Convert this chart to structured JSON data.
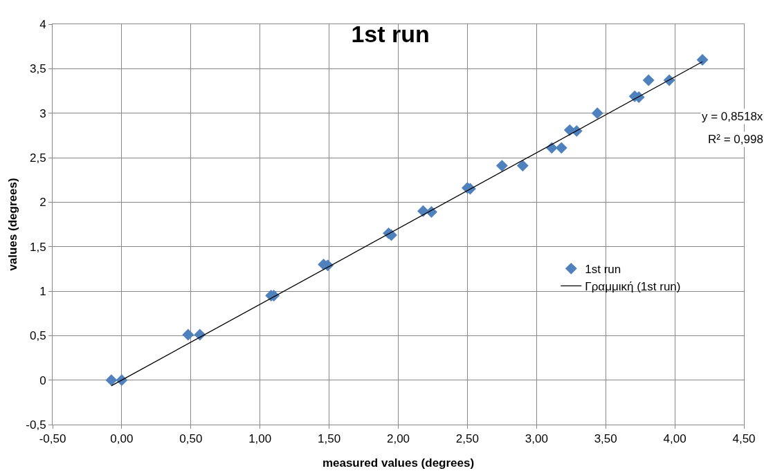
{
  "chart_data": {
    "type": "scatter",
    "title": "1st run",
    "xlabel": "measured values (degrees)",
    "ylabel": "values (degrees)",
    "series": [
      {
        "name": "1st run",
        "marker": "diamond",
        "color": "#4f81bd",
        "x": [
          -0.075,
          0,
          0.48,
          0.565,
          1.08,
          1.1,
          1.46,
          1.49,
          1.93,
          1.95,
          2.18,
          2.24,
          2.5,
          2.52,
          2.75,
          2.9,
          3.11,
          3.18,
          3.24,
          3.29,
          3.44,
          3.71,
          3.74,
          3.81,
          3.96,
          4.2
        ],
        "values": [
          0,
          0,
          0.51,
          0.51,
          0.95,
          0.95,
          1.3,
          1.29,
          1.65,
          1.63,
          1.9,
          1.89,
          2.16,
          2.15,
          2.41,
          2.41,
          2.61,
          2.61,
          2.81,
          2.8,
          3.0,
          3.19,
          3.18,
          3.37,
          3.37,
          3.6
        ]
      },
      {
        "name": "Γραμμική (1st run)",
        "type": "line",
        "marker": "none",
        "color": "#000000",
        "x": [
          -0.075,
          4.2
        ],
        "values": [
          -0.064,
          3.578
        ]
      }
    ],
    "annotations": [
      "y = 0,8518x",
      "R² = 0,998"
    ],
    "xlim": [
      -0.5,
      4.5
    ],
    "xticks": [
      {
        "value": -0.5,
        "label": "-0,50"
      },
      {
        "value": 0,
        "label": "0,00"
      },
      {
        "value": 0.5,
        "label": "0,50"
      },
      {
        "value": 1,
        "label": "1,00"
      },
      {
        "value": 1.5,
        "label": "1,50"
      },
      {
        "value": 2,
        "label": "2,00"
      },
      {
        "value": 2.5,
        "label": "2,50"
      },
      {
        "value": 3,
        "label": "3,00"
      },
      {
        "value": 3.5,
        "label": "3,50"
      },
      {
        "value": 4,
        "label": "4,00"
      },
      {
        "value": 4.5,
        "label": "4,50"
      }
    ],
    "ylim": [
      -0.5,
      4
    ],
    "yticks": [
      {
        "value": -0.5,
        "label": "-0,5"
      },
      0,
      {
        "value": 0.5,
        "label": "0,5"
      },
      1,
      {
        "value": 1.5,
        "label": "1,5"
      },
      2,
      {
        "value": 2.5,
        "label": "2,5"
      },
      3,
      {
        "value": 3.5,
        "label": "3,5"
      },
      4
    ],
    "grid": true,
    "legend": "right"
  }
}
